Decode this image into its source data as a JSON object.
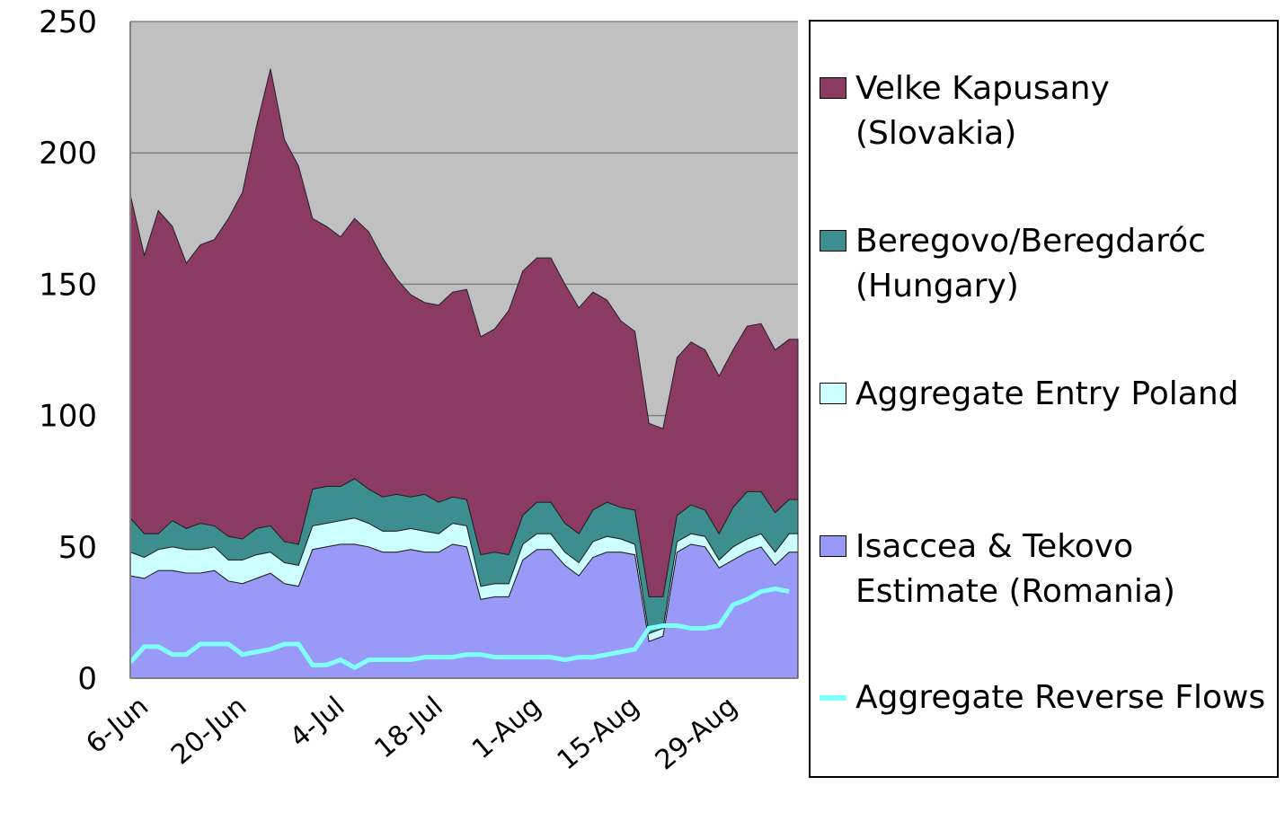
{
  "chart_data": {
    "type": "area",
    "stacked": true,
    "categories": [
      "6-Jun",
      null,
      null,
      null,
      null,
      null,
      null,
      "20-Jun",
      null,
      null,
      null,
      null,
      null,
      null,
      "4-Jul",
      null,
      null,
      null,
      null,
      null,
      null,
      "18-Jul",
      null,
      null,
      null,
      null,
      null,
      null,
      "1-Aug",
      null,
      null,
      null,
      null,
      null,
      null,
      "15-Aug",
      null,
      null,
      null,
      null,
      null,
      null,
      "29-Aug",
      null,
      null,
      null,
      null,
      null
    ],
    "series": [
      {
        "name": "Isaccea & Tekovo Estimate (Romania)",
        "color": "#9999f7",
        "values": [
          39,
          38,
          41,
          41,
          40,
          40,
          41,
          37,
          36,
          38,
          40,
          36,
          35,
          49,
          50,
          51,
          51,
          50,
          48,
          48,
          49,
          48,
          48,
          51,
          50,
          30,
          31,
          31,
          45,
          49,
          49,
          43,
          39,
          46,
          48,
          48,
          47,
          14,
          16,
          48,
          51,
          50,
          42,
          45,
          48,
          50,
          43,
          48
        ]
      },
      {
        "name": "Aggregate Entry Poland",
        "color": "#ccffff",
        "values": [
          9,
          8,
          8,
          9,
          9,
          9,
          9,
          8,
          9,
          9,
          8,
          8,
          8,
          9,
          9,
          9,
          10,
          9,
          8,
          8,
          8,
          8,
          7,
          8,
          8,
          5,
          5,
          5,
          6,
          6,
          6,
          5,
          5,
          6,
          6,
          5,
          4,
          3,
          3,
          4,
          4,
          4,
          3,
          5,
          5,
          5,
          5,
          7
        ]
      },
      {
        "name": "Beregovo/Beregdaróc (Hungary)",
        "color": "#3d8f8f",
        "values": [
          13,
          9,
          6,
          10,
          8,
          10,
          8,
          9,
          8,
          10,
          10,
          8,
          8,
          14,
          14,
          13,
          15,
          13,
          13,
          14,
          12,
          14,
          12,
          10,
          10,
          12,
          12,
          11,
          11,
          12,
          12,
          11,
          11,
          12,
          13,
          12,
          13,
          14,
          12,
          10,
          11,
          10,
          10,
          15,
          18,
          16,
          15,
          13
        ]
      },
      {
        "name": "Velke Kapusany (Slovakia)",
        "color": "#8b3a62",
        "values": [
          123,
          106,
          123,
          112,
          101,
          106,
          109,
          121,
          132,
          153,
          174,
          153,
          144,
          103,
          99,
          95,
          99,
          98,
          91,
          82,
          77,
          73,
          75,
          78,
          80,
          83,
          85,
          93,
          93,
          93,
          93,
          91,
          86,
          83,
          77,
          71,
          68,
          66,
          64,
          60,
          62,
          61,
          60,
          60,
          63,
          64,
          62,
          61
        ]
      },
      {
        "name": "Aggregate Reverse Flows",
        "color": "#80ffff",
        "type": "line",
        "values": [
          6,
          12,
          12,
          9,
          9,
          13,
          13,
          13,
          9,
          10,
          11,
          13,
          13,
          5,
          5,
          7,
          4,
          7,
          7,
          7,
          7,
          8,
          8,
          8,
          9,
          9,
          8,
          8,
          8,
          8,
          8,
          7,
          8,
          8,
          9,
          10,
          11,
          19,
          20,
          20,
          19,
          19,
          20,
          28,
          30,
          33,
          34,
          33
        ]
      }
    ],
    "ylim": [
      0,
      250
    ],
    "yticks": [
      0,
      50,
      100,
      150,
      200,
      250
    ],
    "grid": true,
    "legend": "right"
  }
}
